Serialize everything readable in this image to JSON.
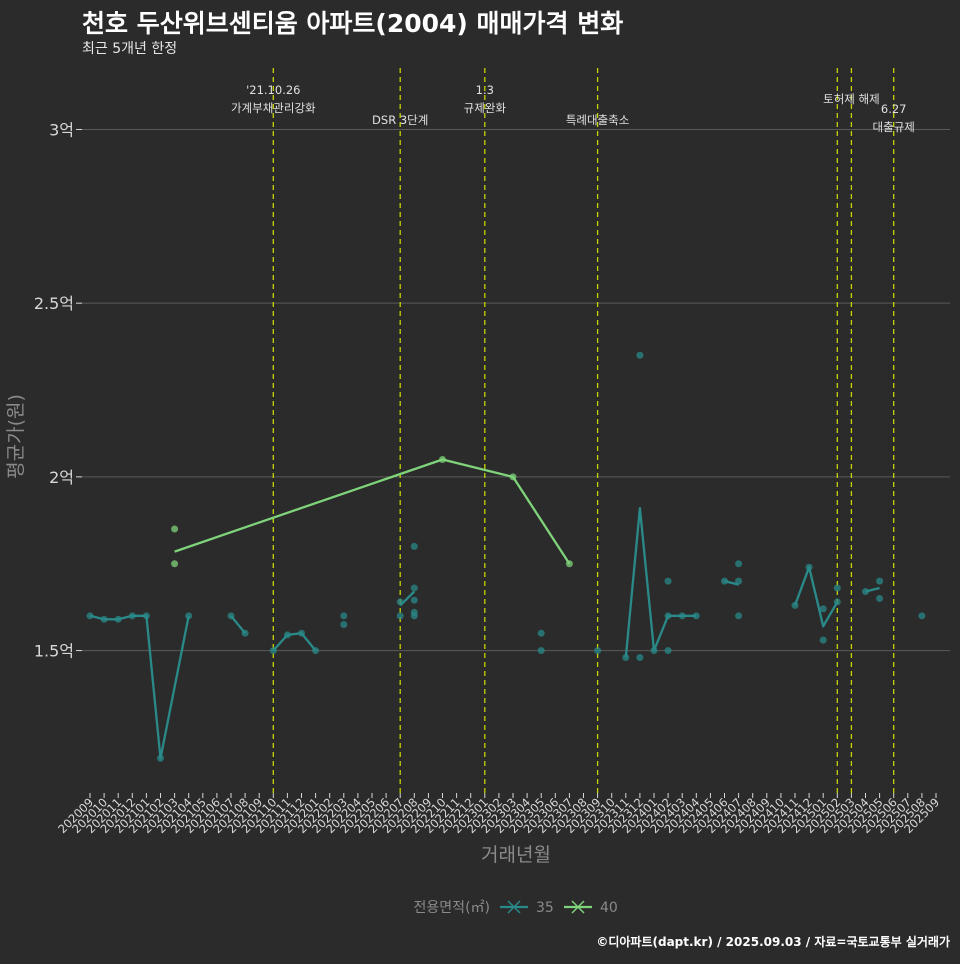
{
  "title": "천호 두산위브센티움 아파트(2004) 매매가격 변화",
  "subtitle": "최근 5개년 한정",
  "caption": "©디아파트(dapt.kr) / 2025.09.03 / 자료=국토교통부 실거래가",
  "colors": {
    "background": "#2b2b2b",
    "grid": "#5a5a5a",
    "series_35": "#2a8a8a",
    "series_40": "#7fd37a",
    "event_line": "#c8d400",
    "axis_text": "#d8d8d8",
    "axis_title": "#8a8a8a"
  },
  "chart_data": {
    "type": "line",
    "xlabel": "거래년월",
    "ylabel": "평균가(원)",
    "ylim": [
      1.09,
      3.2
    ],
    "ymajor": [
      1.5,
      2.0,
      2.5,
      3.0
    ],
    "ytick_labels": [
      "1.5억",
      "2억",
      "2.5억",
      "3억"
    ],
    "grid": true,
    "legend_position": "bottom",
    "legend_title": "전용면적(㎡)",
    "categories": [
      "202009",
      "202010",
      "202011",
      "202012",
      "202101",
      "202102",
      "202103",
      "202104",
      "202105",
      "202106",
      "202107",
      "202108",
      "202109",
      "202110",
      "202111",
      "202112",
      "202201",
      "202202",
      "202203",
      "202204",
      "202205",
      "202206",
      "202207",
      "202208",
      "202209",
      "202210",
      "202211",
      "202212",
      "202301",
      "202302",
      "202303",
      "202304",
      "202305",
      "202306",
      "202307",
      "202308",
      "202309",
      "202310",
      "202311",
      "202312",
      "202401",
      "202402",
      "202403",
      "202404",
      "202405",
      "202406",
      "202407",
      "202408",
      "202409",
      "202410",
      "202411",
      "202412",
      "202501",
      "202502",
      "202503",
      "202504",
      "202505",
      "202506",
      "202507",
      "202508",
      "202509"
    ],
    "series": [
      {
        "name": "35",
        "color": "#2a8a8a",
        "line": [
          [
            "202009",
            1.6
          ],
          [
            "202010",
            1.59
          ],
          [
            "202011",
            1.59
          ],
          [
            "202012",
            1.6
          ],
          [
            "202101",
            1.6
          ],
          [
            "202102",
            1.19
          ],
          [
            "202104",
            1.6
          ]
        ],
        "line_segments": [
          [
            [
              "202009",
              1.6
            ],
            [
              "202010",
              1.59
            ],
            [
              "202011",
              1.59
            ],
            [
              "202012",
              1.6
            ],
            [
              "202101",
              1.6
            ],
            [
              "202102",
              1.19
            ],
            [
              "202104",
              1.6
            ]
          ],
          [
            [
              "202107",
              1.6
            ],
            [
              "202108",
              1.55
            ]
          ],
          [
            [
              "202110",
              1.5
            ],
            [
              "202111",
              1.545
            ],
            [
              "202112",
              1.55
            ],
            [
              "202201",
              1.5
            ]
          ],
          [
            [
              "202207",
              1.63
            ],
            [
              "202208",
              1.67
            ]
          ],
          [
            [
              "202309",
              1.5
            ]
          ],
          [
            [
              "202311",
              1.48
            ],
            [
              "202312",
              1.91
            ],
            [
              "202401",
              1.5
            ],
            [
              "202402",
              1.6
            ],
            [
              "202403",
              1.6
            ],
            [
              "202404",
              1.6
            ]
          ],
          [
            [
              "202406",
              1.7
            ],
            [
              "202407",
              1.69
            ]
          ],
          [
            [
              "202411",
              1.63
            ],
            [
              "202412",
              1.74
            ],
            [
              "202501",
              1.57
            ],
            [
              "202502",
              1.64
            ]
          ],
          [
            [
              "202504",
              1.67
            ],
            [
              "202505",
              1.68
            ]
          ]
        ],
        "points": [
          [
            "202009",
            1.6
          ],
          [
            "202010",
            1.59
          ],
          [
            "202011",
            1.59
          ],
          [
            "202012",
            1.6
          ],
          [
            "202101",
            1.6
          ],
          [
            "202102",
            1.19
          ],
          [
            "202104",
            1.6
          ],
          [
            "202107",
            1.6
          ],
          [
            "202108",
            1.55
          ],
          [
            "202110",
            1.5
          ],
          [
            "202111",
            1.545
          ],
          [
            "202112",
            1.55
          ],
          [
            "202201",
            1.5
          ],
          [
            "202203",
            1.6
          ],
          [
            "202203",
            1.575
          ],
          [
            "202207",
            1.6
          ],
          [
            "202207",
            1.64
          ],
          [
            "202208",
            1.6
          ],
          [
            "202208",
            1.61
          ],
          [
            "202208",
            1.645
          ],
          [
            "202208",
            1.68
          ],
          [
            "202208",
            1.8
          ],
          [
            "202305",
            1.55
          ],
          [
            "202305",
            1.5
          ],
          [
            "202309",
            1.5
          ],
          [
            "202311",
            1.48
          ],
          [
            "202312",
            2.35
          ],
          [
            "202312",
            1.48
          ],
          [
            "202401",
            1.5
          ],
          [
            "202402",
            1.5
          ],
          [
            "202402",
            1.6
          ],
          [
            "202402",
            1.7
          ],
          [
            "202403",
            1.6
          ],
          [
            "202404",
            1.6
          ],
          [
            "202406",
            1.7
          ],
          [
            "202407",
            1.75
          ],
          [
            "202407",
            1.7
          ],
          [
            "202407",
            1.6
          ],
          [
            "202411",
            1.63
          ],
          [
            "202412",
            1.74
          ],
          [
            "202501",
            1.62
          ],
          [
            "202501",
            1.53
          ],
          [
            "202502",
            1.64
          ],
          [
            "202502",
            1.68
          ],
          [
            "202504",
            1.67
          ],
          [
            "202505",
            1.7
          ],
          [
            "202505",
            1.65
          ],
          [
            "202508",
            1.6
          ]
        ]
      },
      {
        "name": "40",
        "color": "#7fd37a",
        "line_segments": [
          [
            [
              "202103",
              1.785
            ],
            [
              "202210",
              2.05
            ],
            [
              "202303",
              2.0
            ],
            [
              "202307",
              1.75
            ]
          ]
        ],
        "points": [
          [
            "202103",
            1.85
          ],
          [
            "202103",
            1.75
          ],
          [
            "202210",
            2.05
          ],
          [
            "202303",
            2.0
          ],
          [
            "202307",
            1.75
          ]
        ]
      }
    ],
    "events": [
      {
        "month": "202110",
        "label_lines": [
          "'21.10.26",
          "가계부채관리강화"
        ],
        "label_row": 0
      },
      {
        "month": "202207",
        "label_lines": [
          "DSR 3단계"
        ],
        "label_row": 1
      },
      {
        "month": "202301",
        "label_lines": [
          "1.3",
          "규제완화"
        ],
        "label_row": 0
      },
      {
        "month": "202309",
        "label_lines": [
          "특례대출축소"
        ],
        "label_row": 1
      },
      {
        "month": "202502",
        "label_lines": [],
        "label_row": 0
      },
      {
        "month": "202503",
        "label_lines": [
          "토허제 해제"
        ],
        "label_row": 0
      },
      {
        "month": "202506",
        "label_lines": [
          "6.27",
          "대출규제"
        ],
        "label_row": 0
      }
    ]
  }
}
